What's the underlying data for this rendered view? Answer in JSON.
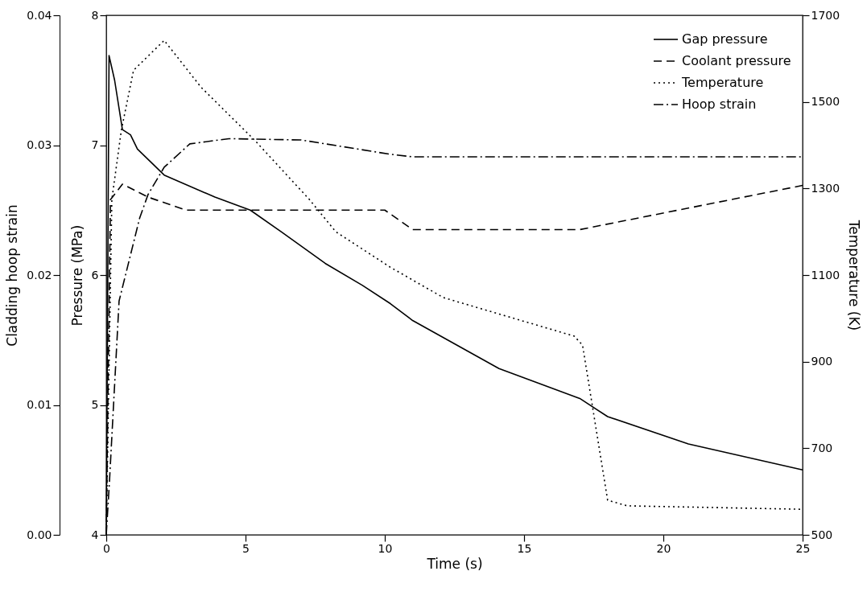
{
  "chart_data": {
    "type": "line",
    "xlabel": "Time (s)",
    "ylabel": "Pressure (MPa)",
    "y2label": "Temperature (K)",
    "y3label": "Cladding hoop strain",
    "xlim": [
      0,
      25
    ],
    "xticks": [
      0,
      5,
      10,
      15,
      20,
      25
    ],
    "ylim": [
      4,
      8
    ],
    "yticks": [
      4,
      5,
      6,
      7,
      8
    ],
    "y2lim": [
      500,
      1700
    ],
    "y2ticks": [
      500,
      700,
      900,
      1100,
      1300,
      1500,
      1700
    ],
    "y3lim": [
      0,
      0.04
    ],
    "y3ticks": [
      {
        "value": 0,
        "label": "0.00"
      },
      {
        "value": 0.01,
        "label": "0.01"
      },
      {
        "value": 0.02,
        "label": "0.02"
      },
      {
        "value": 0.03,
        "label": "0.03"
      },
      {
        "value": 0.04,
        "label": "0.04"
      }
    ],
    "grid": false,
    "legend": "top right",
    "marker": "none",
    "series": [
      {
        "name": "Gap pressure",
        "color": "#000000",
        "line_style": "solid",
        "x": [
          0,
          0.1,
          0.3,
          0.58,
          0.87,
          1.12,
          2.08,
          3.9,
          5.17,
          6.3,
          7.86,
          9.2,
          10.2,
          11.0,
          14.1,
          17.0,
          18.0,
          20.9,
          25
        ],
        "values": [
          4,
          7.69,
          7.5,
          7.12,
          7.08,
          6.97,
          6.77,
          6.6,
          6.5,
          6.33,
          6.09,
          5.92,
          5.78,
          5.65,
          5.28,
          5.05,
          4.91,
          4.7,
          4.5
        ]
      },
      {
        "name": "Coolant pressure",
        "color": "#000000",
        "line_style": "dashed",
        "x": [
          0,
          0.15,
          0.58,
          1.5,
          2.86,
          10.0,
          11.0,
          17.0,
          25
        ],
        "values": [
          4,
          6.58,
          6.7,
          6.6,
          6.5,
          6.5,
          6.35,
          6.35,
          6.69
        ]
      },
      {
        "name": "Temperature",
        "color": "#000000",
        "line_style": "dotted",
        "axis": "y2",
        "x": [
          0,
          0.2,
          0.54,
          0.98,
          2.08,
          3.4,
          5.35,
          7.3,
          8.24,
          10.2,
          12.1,
          16.8,
          17.1,
          18.0,
          18.7,
          25
        ],
        "values": [
          500,
          1274,
          1434,
          1573,
          1642,
          1534,
          1410,
          1274,
          1200,
          1118,
          1048,
          959,
          938,
          580,
          567,
          559
        ]
      },
      {
        "name": "Hoop strain",
        "color": "#000000",
        "line_style": "dashdot",
        "axis": "y3",
        "x": [
          0,
          0.12,
          0.46,
          1.2,
          1.5,
          2.08,
          3.0,
          4.4,
          7.0,
          10.2,
          11.0,
          25
        ],
        "values": [
          0,
          0.0043,
          0.018,
          0.0244,
          0.0262,
          0.0283,
          0.0301,
          0.0305,
          0.0304,
          0.0293,
          0.0291,
          0.0291
        ]
      }
    ]
  }
}
